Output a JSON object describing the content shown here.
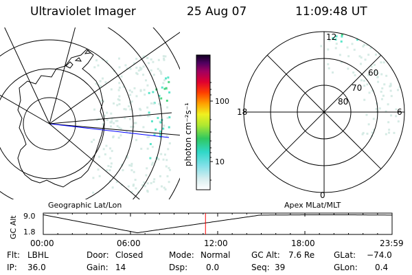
{
  "header": {
    "title": "Ultraviolet Imager",
    "date": "25 Aug 07",
    "time": "11:09:48 UT"
  },
  "colorbar": {
    "label": "photon cm⁻²s⁻¹",
    "ticks": [
      "100",
      "10"
    ]
  },
  "geo_panel": {
    "label": "Geographic Lat/Lon"
  },
  "polar_panel": {
    "label": "Apex MLat/MLT",
    "mlt_labels": {
      "top": "12",
      "left": "18",
      "right": "6",
      "bottom": "0"
    },
    "lat_labels": [
      "60",
      "70",
      "80"
    ]
  },
  "timeline": {
    "ylabel": "GC Alt",
    "yticks": [
      "9.0",
      "1.8"
    ],
    "xticks": [
      "00:00",
      "06:00",
      "12:00",
      "18:00",
      "23:59"
    ],
    "current_time_fraction": 0.4651
  },
  "info": {
    "filter": {
      "label": "Flt:",
      "value": "LBHL"
    },
    "ip": {
      "label": "IP:",
      "value": "36.0"
    },
    "door": {
      "label": "Door:",
      "value": "Closed"
    },
    "gain": {
      "label": "Gain:",
      "value": "14"
    },
    "mode": {
      "label": "Mode:",
      "value": "Normal"
    },
    "dsp": {
      "label": "Dsp:",
      "value": "0.0"
    },
    "gc_alt": {
      "label": "GC Alt:",
      "value": "7.6 Re"
    },
    "seq": {
      "label": "Seq:",
      "value": "39"
    },
    "glat": {
      "label": "GLat:",
      "value": "−74.0"
    },
    "glon": {
      "label": "GLon:",
      "value": "0.4"
    }
  },
  "colors": {
    "aurora_cyan": "#40e0c0",
    "aurora_green": "#30d070",
    "aurora_pale": "#cfe8e0",
    "time_marker": "#ff0000",
    "meridian": "#0000ff"
  }
}
